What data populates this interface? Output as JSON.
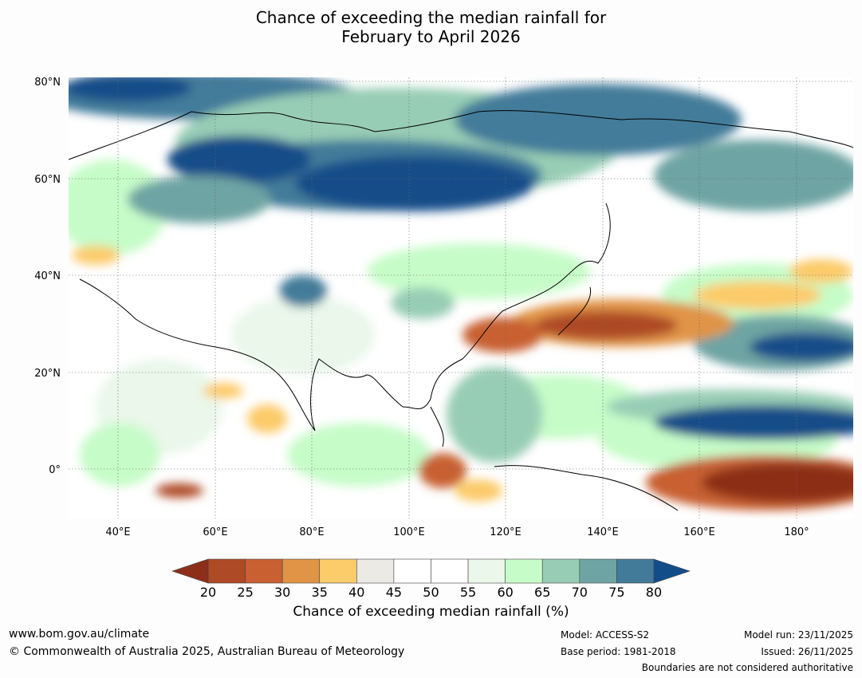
{
  "title": {
    "line1": "Chance of exceeding the median rainfall for",
    "line2": "February to April 2026"
  },
  "map": {
    "latitude_labels": [
      "80°N",
      "60°N",
      "40°N",
      "20°N",
      "0°"
    ],
    "longitude_labels": [
      "40°E",
      "60°E",
      "80°E",
      "100°E",
      "120°E",
      "140°E",
      "160°E",
      "180°"
    ],
    "extent": {
      "lon": [
        30,
        192
      ],
      "lat": [
        -10,
        80
      ]
    }
  },
  "legend": {
    "ticks": [
      "20",
      "25",
      "30",
      "35",
      "40",
      "45",
      "50",
      "55",
      "60",
      "65",
      "70",
      "75",
      "80"
    ],
    "colors": {
      "below20": "#8c2e19",
      "20-25": "#ae4a26",
      "25-30": "#c86032",
      "30-35": "#e09446",
      "35-40": "#fccb6a",
      "40-45": "#eceae5",
      "45-50": "#ffffff",
      "50-55": "#ffffff",
      "55-60": "#eaf7ea",
      "60-65": "#c6fcc8",
      "65-70": "#98cdb5",
      "70-75": "#6ea4a3",
      "75-80": "#427b9a",
      "above80": "#134d89"
    },
    "label": "Chance of exceeding median rainfall (%)"
  },
  "footer": {
    "website": "www.bom.gov.au/climate",
    "copyright": "© Commonwealth of Australia 2025, Australian Bureau of Meteorology",
    "model": "Model: ACCESS-S2",
    "base_period": "Base period: 1981-2018",
    "model_run": "Model run: 23/11/2025",
    "issued": "Issued: 26/11/2025",
    "disclaimer": "Boundaries are not considered authoritative"
  }
}
